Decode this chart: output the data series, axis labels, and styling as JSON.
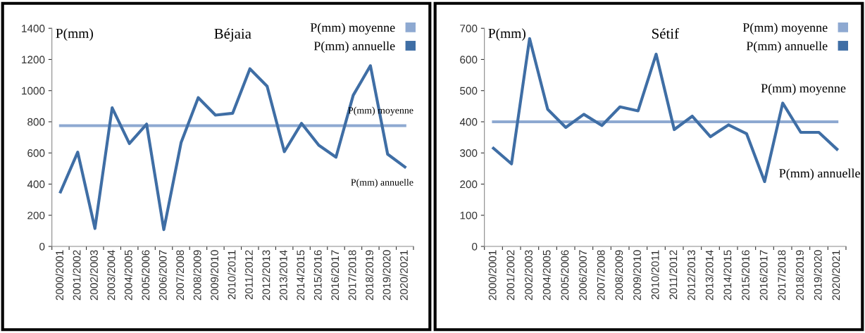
{
  "chart_data": [
    {
      "type": "line",
      "title": "Béjaia",
      "ylabel": "P(mm)",
      "categories": [
        "2000/2001",
        "2001/2002",
        "2002/2003",
        "2003/2004",
        "2004/2005",
        "2005/2006",
        "2006/2007",
        "2007/2008",
        "2008/2009",
        "2009/2010",
        "2010/2011",
        "2011/2012",
        "2012/2013",
        "2013/2014",
        "2014/2015",
        "2015/2016",
        "2016/2017",
        "2017/2018",
        "2018/2019",
        "2019/2020",
        "2020/2021"
      ],
      "series": [
        {
          "name": "P(mm) moyenne",
          "color": "#8ea9d1",
          "values": [
            775,
            775,
            775,
            775,
            775,
            775,
            775,
            775,
            775,
            775,
            775,
            775,
            775,
            775,
            775,
            775,
            775,
            775,
            775,
            775,
            775
          ]
        },
        {
          "name": "P(mm) annuelle",
          "color": "#3f6ea5",
          "values": [
            350,
            605,
            115,
            890,
            660,
            785,
            108,
            665,
            955,
            843,
            855,
            1140,
            1028,
            608,
            790,
            650,
            573,
            970,
            1160,
            592,
            510
          ]
        }
      ],
      "ylim": [
        0,
        1400
      ],
      "yticks": [
        0,
        200,
        400,
        600,
        800,
        1000,
        1200,
        1400
      ],
      "grid": false,
      "legend": "top right",
      "marker": "none",
      "line_style": "solid",
      "annotations": [
        "P(mm) moyenne",
        "P(mm) annuelle"
      ]
    },
    {
      "type": "line",
      "title": "Sétif",
      "ylabel": "P(mm)",
      "categories": [
        "2000/2001",
        "2001/2002",
        "2002/2003",
        "2004/2005",
        "2005/2006",
        "2006/2007",
        "2007/2008",
        "2008/2009",
        "2009/2010",
        "2010/2011",
        "2011/2012",
        "2012/2013",
        "2013/2014",
        "2014/2015",
        "2015/2016",
        "2016/2017",
        "2017/2018",
        "2018/2019",
        "2019/2020",
        "2020/2021"
      ],
      "series": [
        {
          "name": "P(mm) moyenne",
          "color": "#8ea9d1",
          "values": [
            400,
            400,
            400,
            400,
            400,
            400,
            400,
            400,
            400,
            400,
            400,
            400,
            400,
            400,
            400,
            400,
            400,
            400,
            400,
            400
          ]
        },
        {
          "name": "P(mm) annuelle",
          "color": "#3f6ea5",
          "values": [
            315,
            265,
            667,
            440,
            382,
            424,
            388,
            448,
            435,
            617,
            375,
            418,
            352,
            390,
            362,
            208,
            460,
            366,
            366,
            312
          ]
        }
      ],
      "ylim": [
        0,
        700
      ],
      "yticks": [
        0,
        100,
        200,
        300,
        400,
        500,
        600,
        700
      ],
      "grid": false,
      "legend": "top right",
      "marker": "none",
      "line_style": "solid",
      "annotations": [
        "P(mm) moyenne",
        "P(mm) annuelle"
      ]
    }
  ]
}
